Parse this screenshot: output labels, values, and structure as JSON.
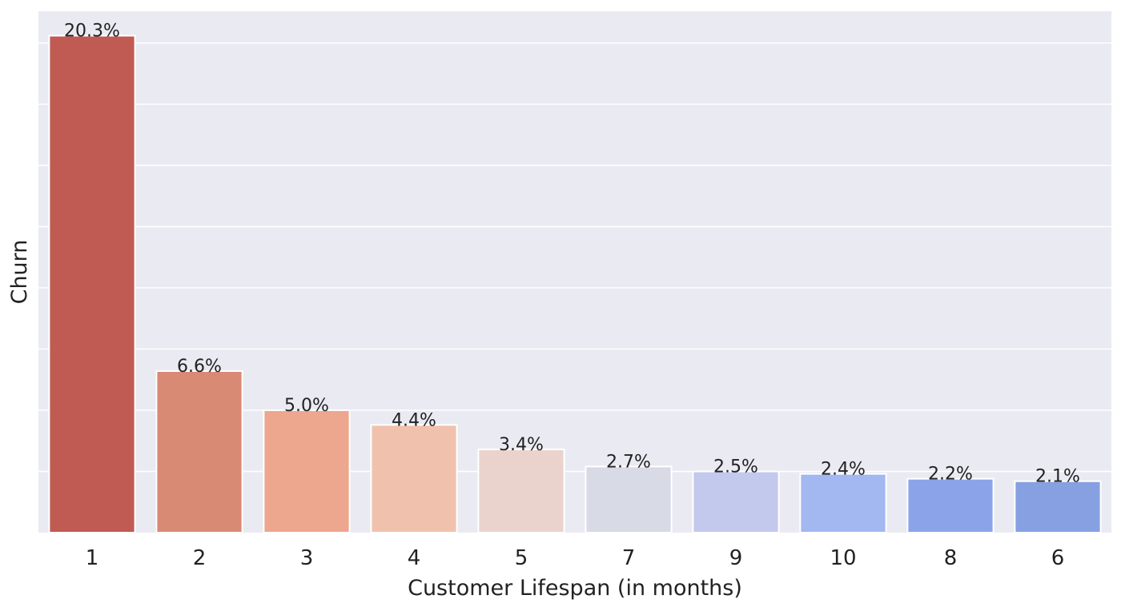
{
  "chart_data": {
    "type": "bar",
    "xlabel": "Customer Lifespan (in months)",
    "ylabel": "Churn",
    "categories": [
      "1",
      "2",
      "3",
      "4",
      "5",
      "7",
      "9",
      "10",
      "8",
      "6"
    ],
    "values": [
      20.3,
      6.6,
      5.0,
      4.4,
      3.4,
      2.7,
      2.5,
      2.4,
      2.2,
      2.1
    ],
    "value_labels": [
      "20.3%",
      "6.6%",
      "5.0%",
      "4.4%",
      "3.4%",
      "2.7%",
      "2.5%",
      "2.4%",
      "2.2%",
      "2.1%"
    ],
    "ylim": [
      0,
      21.3
    ],
    "grid": true,
    "y_tick_labels_shown": false,
    "colors": [
      "#c05b53",
      "#d98a75",
      "#eca78e",
      "#f0c2ae",
      "#ebd3cd",
      "#d8dae5",
      "#c3c9ec",
      "#a3b7f0",
      "#8ba3e8",
      "#86a0e2"
    ],
    "background": "#eaeaf2",
    "grid_color": "#ffffff"
  }
}
